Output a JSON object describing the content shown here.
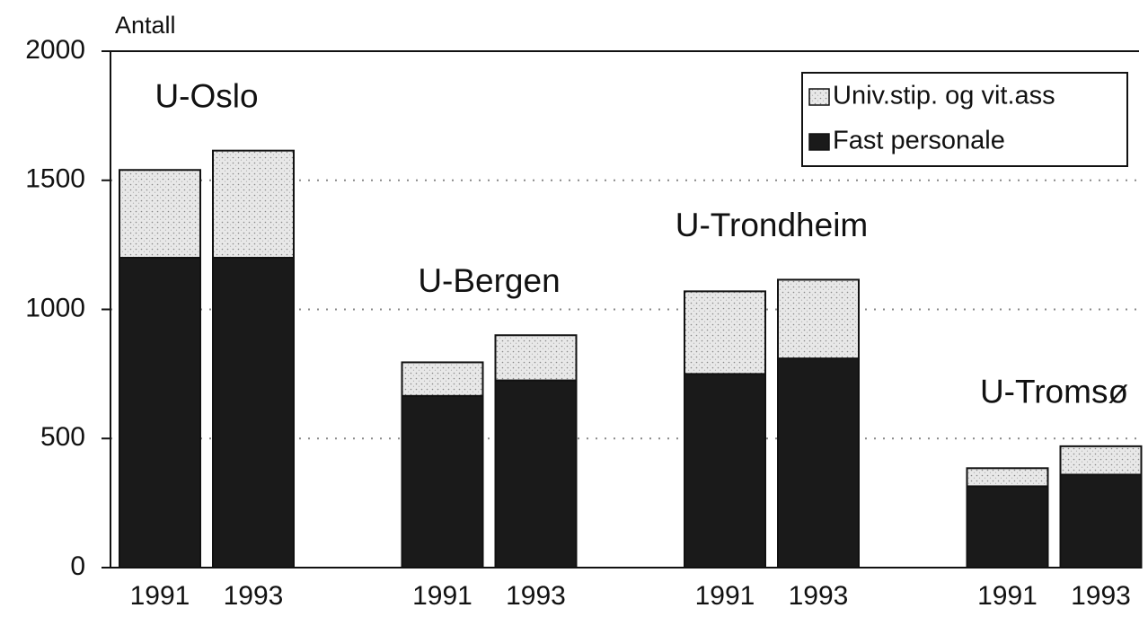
{
  "chart_data": {
    "type": "stacked_bar",
    "y_axis_label": "Antall",
    "groups": [
      "U-Oslo",
      "U-Bergen",
      "U-Trondheim",
      "U-Tromsø"
    ],
    "categories": [
      "1991",
      "1993",
      "1991",
      "1993",
      "1991",
      "1993",
      "1991",
      "1993"
    ],
    "series": [
      {
        "name": "Fast personale",
        "color": "#1a1a1a",
        "values": [
          1200,
          1200,
          665,
          725,
          750,
          810,
          315,
          360
        ]
      },
      {
        "name": "Univ.stip. og vit.ass",
        "color": "#e4e4e4",
        "values": [
          340,
          415,
          130,
          175,
          320,
          305,
          70,
          110
        ]
      }
    ],
    "ylim": [
      0,
      2000
    ],
    "yticks": [
      0,
      500,
      1000,
      1500,
      2000
    ],
    "grid": true,
    "legend": "top-right"
  }
}
